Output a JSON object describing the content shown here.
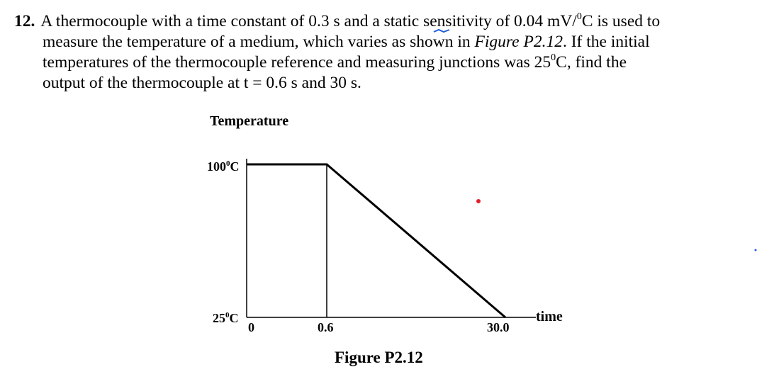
{
  "problem": {
    "number": "12.",
    "line1_a": "A thermocouple with a time constant of 0.3 s and a static sensitivity of 0.04 mV/",
    "line1_deg": "0",
    "line1_b": "C is used to",
    "line2": "measure the temperature of a medium, which varies as shown in",
    "line2_fig": "Figure P2.12",
    "line2_b": ". If the initial",
    "line3_a": "temperatures of the thermocouple reference and measuring junctions was 25",
    "line3_deg": "0",
    "line3_b": "C, find the",
    "line4": "output of the thermocouple at t = 0.6 s and 30 s."
  },
  "figure": {
    "ylabel": "Temperature",
    "xlabel": "time",
    "y_top_label": "100",
    "y_top_deg": "0",
    "y_top_unit": "C",
    "y_bottom_label": "25",
    "y_bottom_deg": "0",
    "y_bottom_unit": "C",
    "x_origin_label": "0",
    "x_mid_label": "0.6",
    "x_end_label": "30.0",
    "caption": "Figure P2.12"
  },
  "chart_data": {
    "type": "line",
    "title": "",
    "xlabel": "time",
    "ylabel": "Temperature",
    "series": [
      {
        "x": [
          0,
          0.6,
          30.0
        ],
        "y": [
          100,
          100,
          25
        ]
      }
    ],
    "x_ticks": [
      "0",
      "0.6",
      "30.0"
    ],
    "y_ticks": [
      "25°C",
      "100°C"
    ],
    "grid": false
  },
  "colors": {
    "annotation_dot": "#e0202a",
    "annotation_mark": "#1f5fd6",
    "stray_dot": "#1f5fd6"
  }
}
